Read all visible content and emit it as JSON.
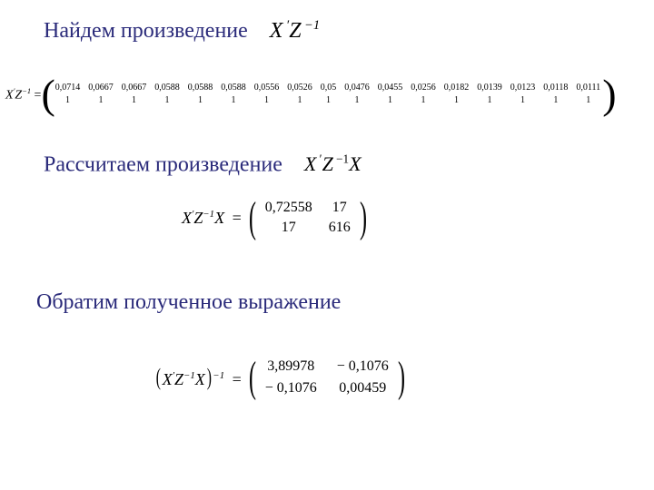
{
  "colors": {
    "heading": "#2a2a7a",
    "text": "#000000",
    "background": "#ffffff"
  },
  "typography": {
    "heading_fontsize": 24,
    "body_font": "Georgia, Times New Roman, serif",
    "math_font": "Times New Roman, serif",
    "vector_val_fontsize": 10,
    "matrix_cell_fontsize": 16
  },
  "heading1": {
    "text": "Найдем произведение",
    "formula": "X ′ Z⁻¹"
  },
  "eq1": {
    "lhs_X": "X",
    "lhs_Z": "Z",
    "prime": "′",
    "neg1": "−1",
    "eq": "=",
    "row_top": [
      "0,0714",
      "0,0667",
      "0,0667",
      "0,0588",
      "0,0588",
      "0,0588",
      "0,0556",
      "0,0526",
      "0,05",
      "0,0476",
      "0,0455",
      "0,0256",
      "0,0182",
      "0,0139",
      "0,0123",
      "0,0118",
      "0,0111"
    ],
    "row_bot": [
      "1",
      "1",
      "1",
      "1",
      "1",
      "1",
      "1",
      "1",
      "1",
      "1",
      "1",
      "1",
      "1",
      "1",
      "1",
      "1",
      "1"
    ]
  },
  "heading2": {
    "text": "Рассчитаем произведение",
    "formula": "X ′ Z⁻¹ X"
  },
  "eq2": {
    "lhs": "X ′ Z⁻¹ X =",
    "X": "X",
    "Z": "Z",
    "prime": "′",
    "neg1": "−1",
    "eq": "=",
    "m": [
      [
        "0,72558",
        "17"
      ],
      [
        "17",
        "616"
      ]
    ]
  },
  "heading3": {
    "text": "Обратим полученное выражение"
  },
  "eq3": {
    "X": "X",
    "Z": "Z",
    "prime": "′",
    "neg1": "−1",
    "outer_exp": "−1",
    "eq": "=",
    "m": [
      [
        "3,89978",
        "− 0,1076"
      ],
      [
        "− 0,1076",
        "0,00459"
      ]
    ]
  }
}
